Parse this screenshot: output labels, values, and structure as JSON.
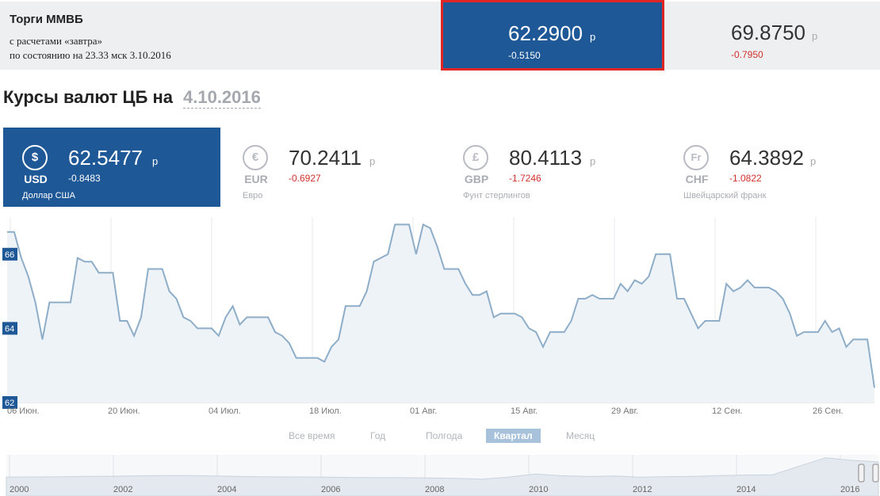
{
  "mmvb": {
    "title": "Торги ММВБ",
    "subtitle": "с расчетами «завтра»",
    "date_line": "по состоянию на 23.33 мск 3.10.2016",
    "quotes": [
      {
        "value": "62.2900",
        "currency": "р",
        "change": "-0.5150"
      },
      {
        "value": "69.8750",
        "currency": "р",
        "change": "-0.7950"
      }
    ]
  },
  "heading": {
    "text": "Курсы валют ЦБ на",
    "date": "4.10.2016"
  },
  "cards": [
    {
      "symbol": "$",
      "code": "USD",
      "value": "62.5477",
      "currency": "р",
      "change": "-0.8483",
      "name": "Доллар США"
    },
    {
      "symbol": "€",
      "code": "EUR",
      "value": "70.2411",
      "currency": "р",
      "change": "-0.6927",
      "name": "Евро"
    },
    {
      "symbol": "£",
      "code": "GBP",
      "value": "80.4113",
      "currency": "р",
      "change": "-1.7246",
      "name": "Фунт стерлингов"
    },
    {
      "symbol": "Fr",
      "code": "CHF",
      "value": "64.3892",
      "currency": "р",
      "change": "-1.0822",
      "name": "Швейцарский франк"
    }
  ],
  "ranges": [
    "Все время",
    "Год",
    "Полгода",
    "Квартал",
    "Месяц"
  ],
  "active_range": "Квартал",
  "colors": {
    "accent": "#1f5897",
    "highlight_border": "#e02525",
    "negative": "#d0312d",
    "line": "#8eadc8",
    "area": "#eef3f7",
    "range_active": "#a8c2dc"
  },
  "chart_data": {
    "type": "area",
    "series": [
      {
        "values": [
          66.6,
          66.6,
          65.9,
          65.4,
          64.7,
          63.7,
          64.7,
          64.7,
          64.7,
          64.7,
          65.9,
          65.8,
          65.8,
          65.5,
          65.5,
          65.5,
          64.2,
          64.2,
          63.8,
          64.3,
          65.6,
          65.6,
          65.6,
          65.0,
          64.8,
          64.3,
          64.2,
          64.0,
          64.0,
          64.0,
          63.8,
          64.3,
          64.6,
          64.1,
          64.3,
          64.3,
          64.3,
          64.3,
          63.9,
          63.8,
          63.6,
          63.2,
          63.2,
          63.2,
          63.2,
          63.1,
          63.5,
          63.7,
          64.6,
          64.6,
          64.6,
          65.0,
          65.8,
          65.9,
          66.0,
          66.8,
          66.8,
          66.8,
          66.0,
          66.8,
          66.7,
          66.2,
          65.6,
          65.6,
          65.6,
          65.2,
          64.9,
          64.9,
          65.0,
          64.3,
          64.4,
          64.4,
          64.4,
          64.3,
          64.0,
          63.9,
          63.5,
          63.9,
          63.9,
          63.9,
          64.2,
          64.8,
          64.8,
          64.9,
          64.8,
          64.8,
          64.8,
          65.2,
          65.0,
          65.3,
          65.2,
          65.4,
          66.0,
          66.0,
          66.0,
          64.8,
          64.8,
          64.4,
          64.0,
          64.2,
          64.2,
          64.2,
          65.2,
          65.0,
          65.1,
          65.3,
          65.1,
          65.1,
          65.1,
          65.0,
          64.8,
          64.4,
          63.8,
          63.9,
          63.9,
          63.9,
          64.2,
          63.9,
          64.0,
          63.5,
          63.7,
          63.7,
          63.7,
          62.4
        ]
      }
    ],
    "x_tick_labels": [
      "06 Июн.",
      "20 Июн.",
      "04 Июл.",
      "18 Июл.",
      "01 Авг.",
      "15 Авг.",
      "29 Авг.",
      "12 Сен.",
      "26 Сен."
    ],
    "y_tick_labels": [
      "66",
      "64",
      "62"
    ],
    "ylim": [
      62,
      67
    ],
    "x_range": [
      "2016-06-03",
      "2016-10-04"
    ],
    "grid": true,
    "navigator": {
      "year_labels": [
        "2000",
        "2002",
        "2004",
        "2006",
        "2008",
        "2010",
        "2012",
        "2014",
        "2016"
      ],
      "values": [
        28.4,
        28.6,
        29.0,
        29.9,
        30.2,
        31.3,
        31.8,
        31.6,
        30.8,
        29.4,
        28.8,
        28.6,
        28.4,
        27.5,
        27.2,
        26.9,
        26.2,
        25.4,
        23.5,
        28.2,
        35.4,
        31.5,
        29.7,
        30.7,
        28.1,
        29.3,
        30.0,
        31.8,
        32.9,
        33.5,
        53.0,
        72.0,
        66.0,
        62.5
      ]
    }
  }
}
